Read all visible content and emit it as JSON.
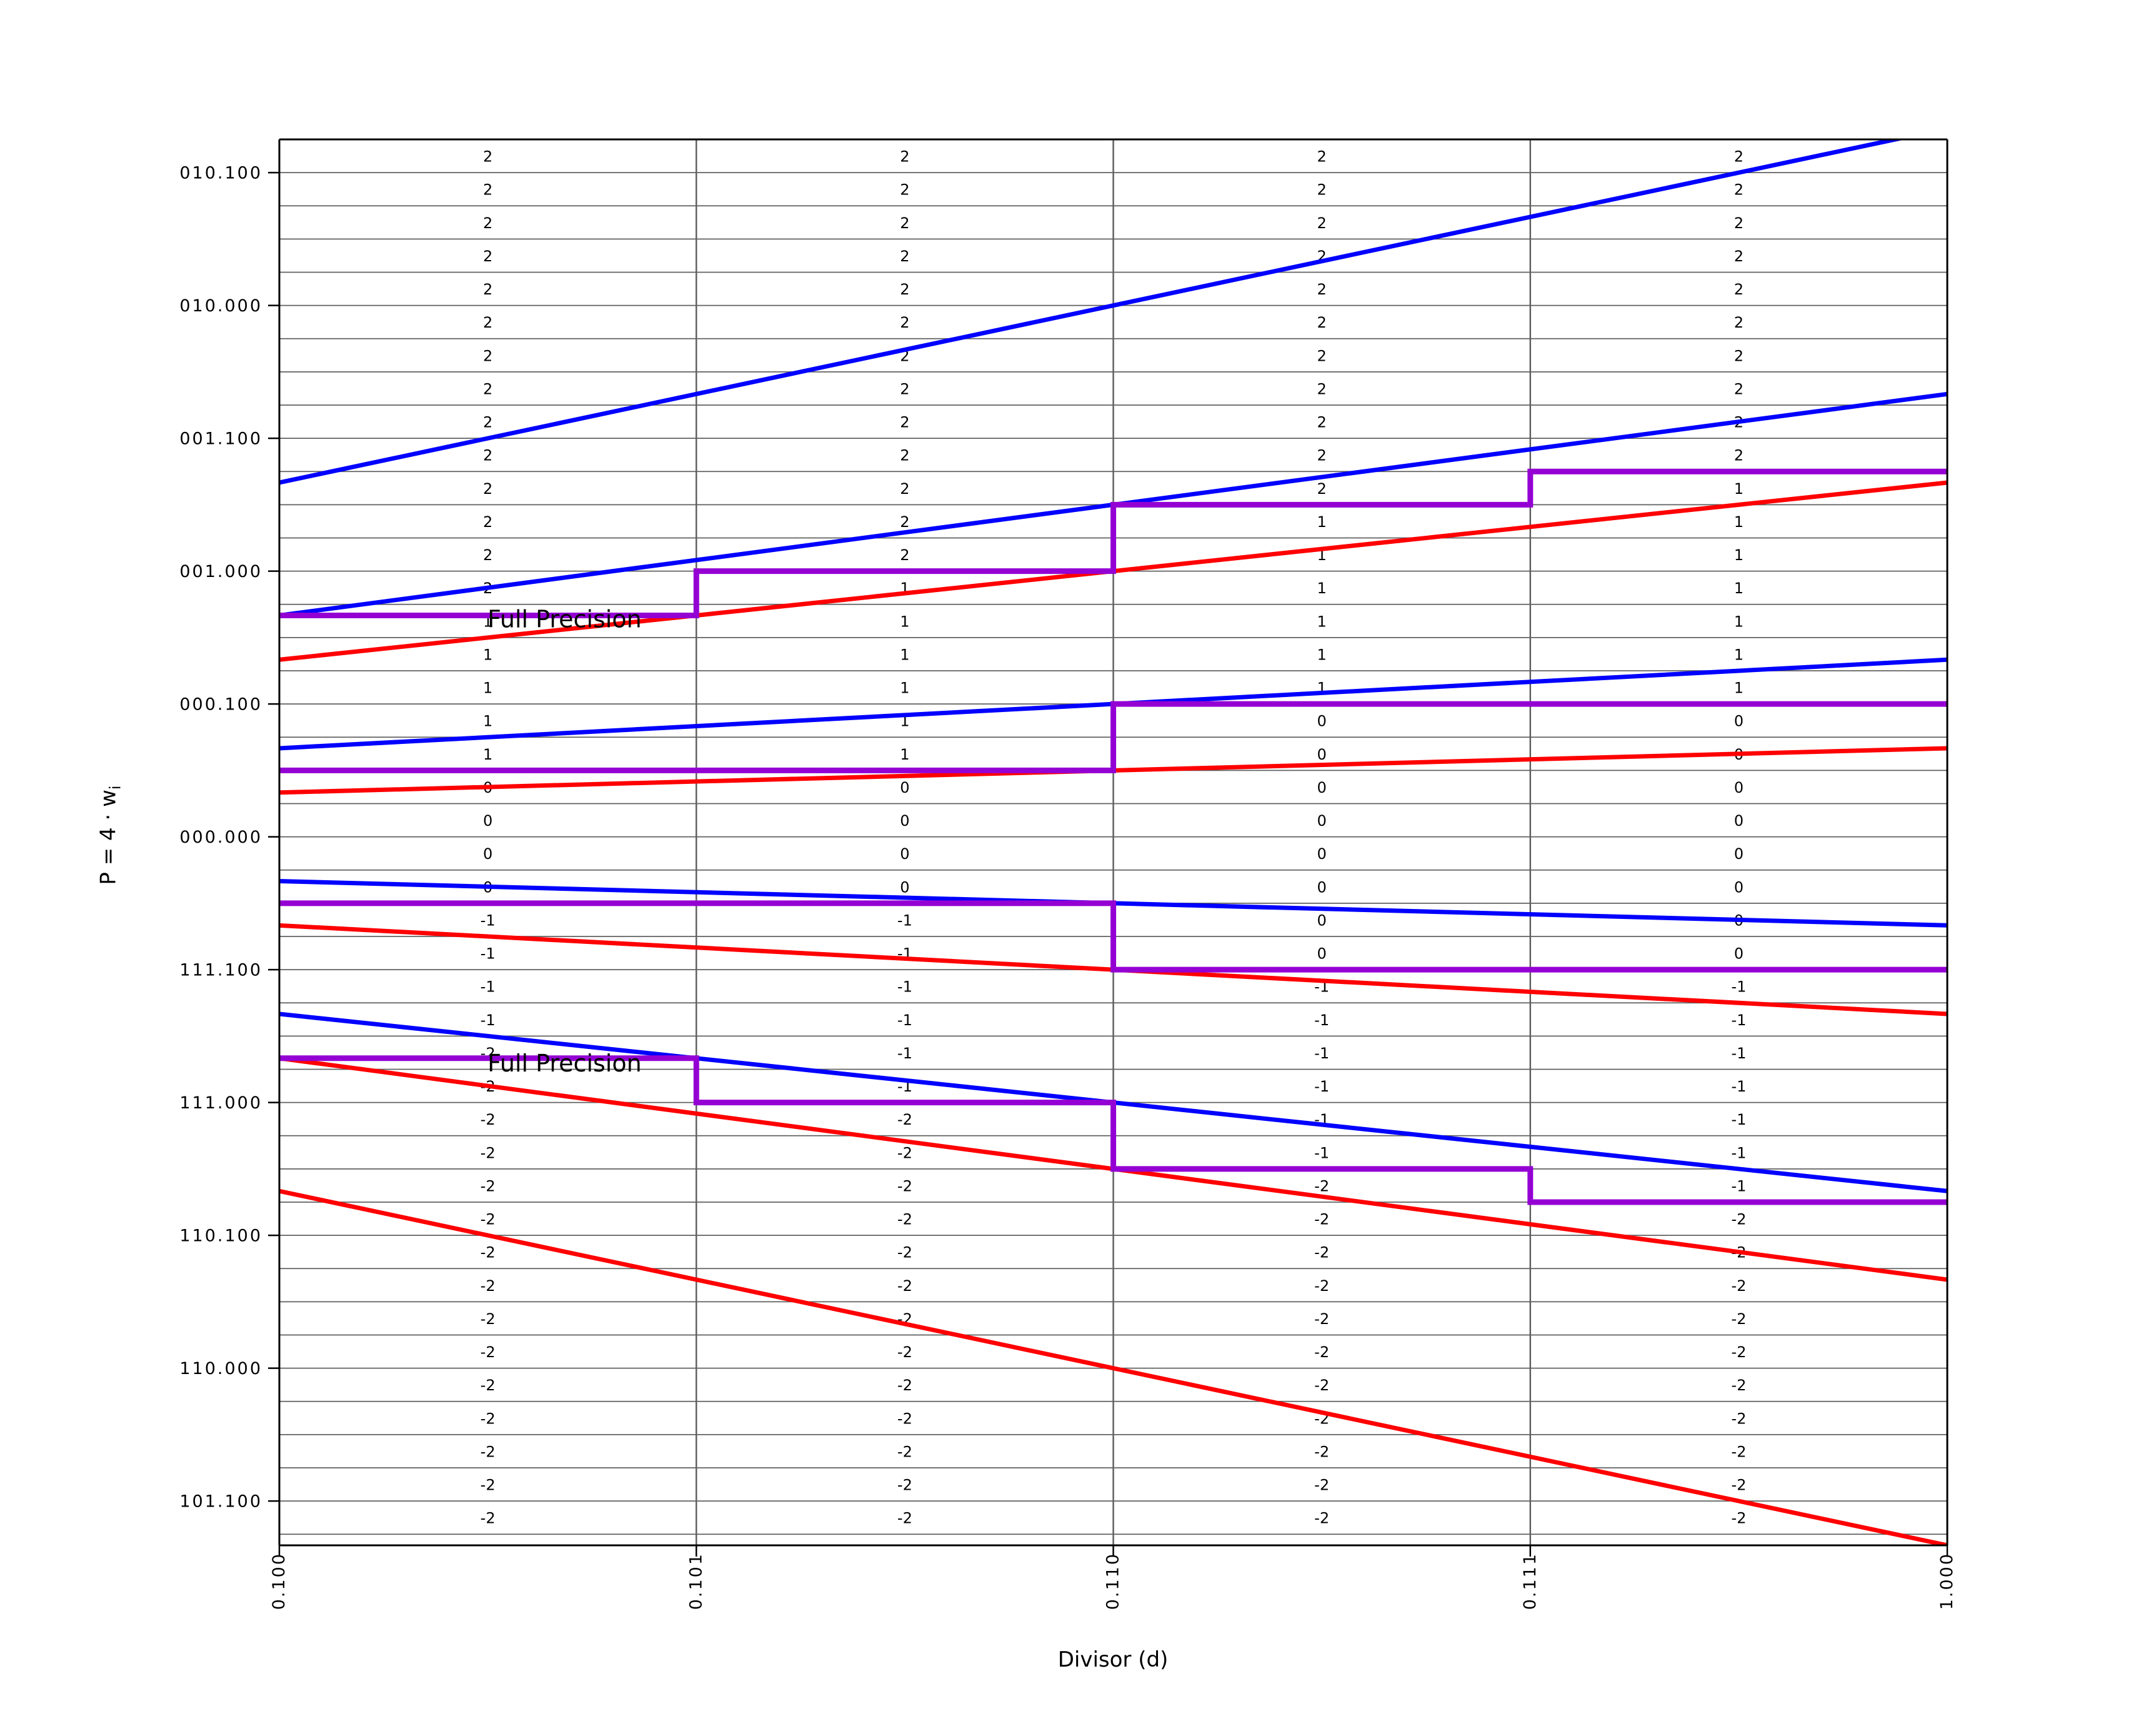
{
  "chart_data": {
    "type": "line",
    "subtype": "srt-radix4-pd-quotient-selection-diagram",
    "title": "",
    "xlabel": "Divisor (d)",
    "ylabel_main": "P = 4 ⋅ w",
    "ylabel_sub": "i",
    "xlim": [
      0.5,
      1.0
    ],
    "ylim": [
      -2.6667,
      2.625
    ],
    "grid": true,
    "row_step": 0.125,
    "x_ticks": [
      {
        "d": 0.5,
        "label": "0.100"
      },
      {
        "d": 0.625,
        "label": "0.101"
      },
      {
        "d": 0.75,
        "label": "0.110"
      },
      {
        "d": 0.875,
        "label": "0.111"
      },
      {
        "d": 1.0,
        "label": "1.000"
      }
    ],
    "y_ticks": [
      {
        "p": 2.5,
        "label": "010.100"
      },
      {
        "p": 2.0,
        "label": "010.000"
      },
      {
        "p": 1.5,
        "label": "001.100"
      },
      {
        "p": 1.0,
        "label": "001.000"
      },
      {
        "p": 0.5,
        "label": "000.100"
      },
      {
        "p": 0.0,
        "label": "000.000"
      },
      {
        "p": -0.5,
        "label": "111.100"
      },
      {
        "p": -1.0,
        "label": "111.000"
      },
      {
        "p": -1.5,
        "label": "110.100"
      },
      {
        "p": -2.0,
        "label": "110.000"
      },
      {
        "p": -2.5,
        "label": "101.100"
      }
    ],
    "column_boundaries_d": [
      0.5,
      0.625,
      0.75,
      0.875,
      1.0
    ],
    "upper_bound_lines_blue": [
      {
        "digit": 2,
        "p_coefficient": 2.66667
      },
      {
        "digit": 1,
        "p_coefficient": 1.66667
      },
      {
        "digit": 0,
        "p_coefficient": 0.66667
      },
      {
        "digit": -1,
        "p_coefficient": -0.33333
      },
      {
        "digit": -2,
        "p_coefficient": -1.33333
      }
    ],
    "lower_bound_lines_red": [
      {
        "digit": 2,
        "p_coefficient": 1.33333
      },
      {
        "digit": 1,
        "p_coefficient": 0.33333
      },
      {
        "digit": 0,
        "p_coefficient": -0.66667
      },
      {
        "digit": -1,
        "p_coefficient": -1.66667
      },
      {
        "digit": -2,
        "p_coefficient": -2.66667
      }
    ],
    "selection_staircases_purple": [
      {
        "boundary": "2|1",
        "levels_per_column": [
          0.83333,
          1.0,
          1.25,
          1.375
        ]
      },
      {
        "boundary": "1|0",
        "levels_per_column": [
          0.25,
          0.25,
          0.5,
          0.5
        ]
      },
      {
        "boundary": "0|-1",
        "levels_per_column": [
          -0.25,
          -0.25,
          -0.5,
          -0.5
        ]
      },
      {
        "boundary": "-1|-2",
        "levels_per_column": [
          -0.83333,
          -1.0,
          -1.25,
          -1.375
        ]
      }
    ],
    "annotations": [
      {
        "text": "Full Precision",
        "d": 0.5624,
        "p": 0.788
      },
      {
        "text": "Full Precision",
        "d": 0.5624,
        "p": -0.883
      }
    ],
    "digit_table": {
      "row_top_p_first": 2.625,
      "rows": 42,
      "columns": [
        {
          "d_range": [
            0.5,
            0.625
          ],
          "digits_top_to_bottom": [
            2,
            2,
            2,
            2,
            2,
            2,
            2,
            2,
            2,
            2,
            2,
            2,
            2,
            2,
            1,
            1,
            1,
            1,
            1,
            0,
            0,
            0,
            0,
            -1,
            -1,
            -1,
            -1,
            -2,
            -2,
            -2,
            -2,
            -2,
            -2,
            -2,
            -2,
            -2,
            -2,
            -2,
            -2,
            -2,
            -2,
            -2
          ]
        },
        {
          "d_range": [
            0.625,
            0.75
          ],
          "digits_top_to_bottom": [
            2,
            2,
            2,
            2,
            2,
            2,
            2,
            2,
            2,
            2,
            2,
            2,
            2,
            1,
            1,
            1,
            1,
            1,
            1,
            0,
            0,
            0,
            0,
            -1,
            -1,
            -1,
            -1,
            -1,
            -1,
            -2,
            -2,
            -2,
            -2,
            -2,
            -2,
            -2,
            -2,
            -2,
            -2,
            -2,
            -2,
            -2
          ]
        },
        {
          "d_range": [
            0.75,
            0.875
          ],
          "digits_top_to_bottom": [
            2,
            2,
            2,
            2,
            2,
            2,
            2,
            2,
            2,
            2,
            2,
            1,
            1,
            1,
            1,
            1,
            1,
            0,
            0,
            0,
            0,
            0,
            0,
            0,
            0,
            -1,
            -1,
            -1,
            -1,
            -1,
            -1,
            -2,
            -2,
            -2,
            -2,
            -2,
            -2,
            -2,
            -2,
            -2,
            -2,
            -2
          ]
        },
        {
          "d_range": [
            0.875,
            1.0
          ],
          "digits_top_to_bottom": [
            2,
            2,
            2,
            2,
            2,
            2,
            2,
            2,
            2,
            2,
            1,
            1,
            1,
            1,
            1,
            1,
            1,
            0,
            0,
            0,
            0,
            0,
            0,
            0,
            0,
            -1,
            -1,
            -1,
            -1,
            -1,
            -1,
            -1,
            -2,
            -2,
            -2,
            -2,
            -2,
            -2,
            -2,
            -2,
            -2,
            -2
          ]
        }
      ]
    },
    "colors": {
      "upper_bound": "#0000FF",
      "lower_bound": "#FF0000",
      "staircase": "#9400D3",
      "grid": "#606060",
      "spine": "#000000",
      "text": "#000000",
      "background": "#FFFFFF"
    }
  }
}
